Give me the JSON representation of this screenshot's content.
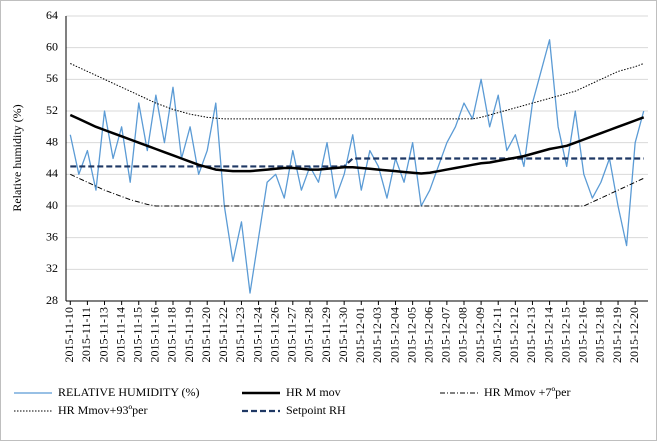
{
  "chart_data": {
    "type": "line",
    "y_label": "Relative humidity (%)",
    "ylim": [
      28,
      64
    ],
    "yticks": [
      28,
      32,
      36,
      40,
      44,
      48,
      52,
      56,
      60,
      64
    ],
    "grid": true,
    "legend": "bottom",
    "categories": [
      "2015-11-10",
      null,
      "2015-11-11",
      null,
      "2015-11-13",
      null,
      "2015-11-14",
      null,
      "2015-11-15",
      null,
      "2015-11-16",
      null,
      "2015-11-18",
      null,
      "2015-11-19",
      null,
      "2015-11-20",
      null,
      "2015-11-22",
      null,
      "2015-11-23",
      null,
      "2015-11-24",
      null,
      "2015-11-26",
      null,
      "2015-11-27",
      null,
      "2015-11-28",
      null,
      "2015-11-29",
      null,
      "2015-11-30",
      null,
      "2015-12-01",
      null,
      "2015-12-03",
      null,
      "2015-12-04",
      null,
      "2015-12-05",
      null,
      "2015-12-06",
      null,
      "2015-12-07",
      null,
      "2015-12-08",
      null,
      "2015-12-09",
      null,
      "2015-12-11",
      null,
      "2015-12-12",
      null,
      "2015-12-13",
      null,
      "2015-12-14",
      null,
      "2015-12-15",
      null,
      "2015-12-16",
      null,
      "2015-12-18",
      null,
      "2015-12-19",
      null,
      "2015-12-20",
      null
    ],
    "series": [
      {
        "name": "RELATIVE HUMIDITY (%)",
        "color": "#5b9bd5",
        "style": "solid",
        "values": [
          49,
          44,
          47,
          42,
          52,
          46,
          50,
          43,
          53,
          47,
          54,
          48,
          55,
          46,
          50,
          44,
          47,
          53,
          40,
          33,
          38,
          29,
          36,
          43,
          44,
          41,
          47,
          42,
          45,
          43,
          48,
          41,
          44,
          49,
          42,
          47,
          45,
          41,
          46,
          43,
          48,
          40,
          42,
          45,
          48,
          50,
          53,
          51,
          56,
          50,
          54,
          47,
          49,
          45,
          53,
          57,
          61,
          50,
          45,
          52,
          44,
          41,
          43,
          46,
          40,
          35,
          48,
          52
        ]
      },
      {
        "name": "HR M mov",
        "color": "#000000",
        "style": "thick",
        "values": [
          51.5,
          51,
          50.5,
          50,
          49.6,
          49.2,
          48.8,
          48.4,
          48,
          47.6,
          47.2,
          46.8,
          46.4,
          46,
          45.6,
          45.2,
          44.9,
          44.6,
          44.5,
          44.4,
          44.4,
          44.4,
          44.5,
          44.6,
          44.7,
          44.8,
          44.8,
          44.7,
          44.6,
          44.6,
          44.7,
          44.8,
          44.9,
          44.9,
          44.8,
          44.7,
          44.6,
          44.5,
          44.4,
          44.3,
          44.2,
          44.1,
          44.2,
          44.4,
          44.6,
          44.8,
          45,
          45.2,
          45.4,
          45.5,
          45.7,
          45.9,
          46.1,
          46.3,
          46.6,
          46.9,
          47.2,
          47.4,
          47.6,
          48,
          48.4,
          48.8,
          49.2,
          49.6,
          50,
          50.4,
          50.8,
          51.2
        ]
      },
      {
        "name": "HR Mmov +7ºper",
        "color": "#000000",
        "style": "dashdot",
        "values": [
          44,
          43.5,
          43,
          42.5,
          42,
          41.6,
          41.2,
          40.8,
          40.5,
          40.2,
          40,
          40,
          40,
          40,
          40,
          40,
          40,
          40,
          40,
          40,
          40,
          40,
          40,
          40,
          40,
          40,
          40,
          40,
          40,
          40,
          40,
          40,
          40,
          40,
          40,
          40,
          40,
          40,
          40,
          40,
          40,
          40,
          40,
          40,
          40,
          40,
          40,
          40,
          40,
          40,
          40,
          40,
          40,
          40,
          40,
          40,
          40,
          40,
          40,
          40,
          40,
          40.5,
          41,
          41.5,
          42,
          42.5,
          43,
          43.5
        ]
      },
      {
        "name": "HR Mmov+93ºper",
        "color": "#000000",
        "style": "dotted",
        "values": [
          58,
          57.5,
          57,
          56.5,
          56,
          55.5,
          55,
          54.5,
          54,
          53.5,
          53,
          52.6,
          52.2,
          51.9,
          51.6,
          51.4,
          51.2,
          51.1,
          51,
          51,
          51,
          51,
          51,
          51,
          51,
          51,
          51,
          51,
          51,
          51,
          51,
          51,
          51,
          51,
          51,
          51,
          51,
          51,
          51,
          51,
          51,
          51,
          51,
          51,
          51,
          51,
          51,
          51,
          51.2,
          51.5,
          51.8,
          52.1,
          52.4,
          52.7,
          53,
          53.3,
          53.6,
          53.9,
          54.2,
          54.5,
          55,
          55.5,
          56,
          56.5,
          57,
          57.3,
          57.6,
          58
        ]
      },
      {
        "name": "Setpoint RH",
        "color": "#1f3864",
        "style": "dashed",
        "values": [
          45,
          45,
          45,
          45,
          45,
          45,
          45,
          45,
          45,
          45,
          45,
          45,
          45,
          45,
          45,
          45,
          45,
          45,
          45,
          45,
          45,
          45,
          45,
          45,
          45,
          45,
          45,
          45,
          45,
          45,
          45,
          45,
          45,
          46,
          46,
          46,
          46,
          46,
          46,
          46,
          46,
          46,
          46,
          46,
          46,
          46,
          46,
          46,
          46,
          46,
          46,
          46,
          46,
          46,
          46,
          46,
          46,
          46,
          46,
          46,
          46,
          46,
          46,
          46,
          46,
          46,
          46,
          46
        ]
      }
    ]
  }
}
